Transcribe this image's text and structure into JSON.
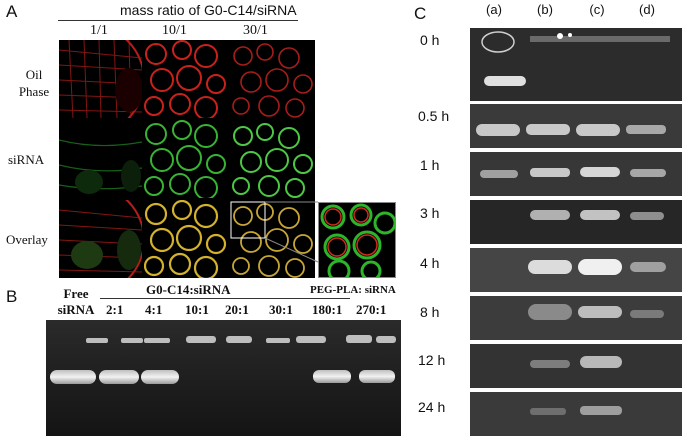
{
  "panel_a": {
    "label": "A",
    "header": "mass ratio of G0-C14/siRNA",
    "ratios": [
      "1/1",
      "10/1",
      "30/1"
    ],
    "rows": [
      "Oil\nPhase",
      "siRNA",
      "Overlay"
    ]
  },
  "panel_b": {
    "label": "B",
    "free_label_line1": "Free",
    "free_label_line2": "siRNA",
    "group_label": "G0-C14:siRNA",
    "ratios": [
      "2:1",
      "4:1",
      "10:1",
      "20:1",
      "30:1"
    ],
    "peg_label": "PEG-PLA: siRNA",
    "peg_ratios": [
      "180:1",
      "270:1"
    ]
  },
  "panel_c": {
    "label": "C",
    "lanes": [
      "(a)",
      "(b)",
      "(c)",
      "(d)"
    ],
    "times": [
      "0 h",
      "0.5 h",
      "1 h",
      "3 h",
      "4 h",
      "8 h",
      "12 h",
      "24 h"
    ]
  },
  "colors": {
    "oil_red": "#d0241f",
    "sirna_green": "#2fb52a",
    "overlay_yellow": "#d8c23a",
    "gel_bg": "#1e1e1e",
    "band": "#e8e8e8"
  }
}
